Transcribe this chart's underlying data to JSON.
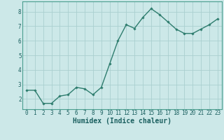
{
  "x": [
    0,
    1,
    2,
    3,
    4,
    5,
    6,
    7,
    8,
    9,
    10,
    11,
    12,
    13,
    14,
    15,
    16,
    17,
    18,
    19,
    20,
    21,
    22,
    23
  ],
  "y": [
    2.6,
    2.6,
    1.7,
    1.7,
    2.2,
    2.3,
    2.8,
    2.7,
    2.3,
    2.8,
    4.4,
    6.0,
    7.1,
    6.85,
    7.6,
    8.2,
    7.8,
    7.3,
    6.8,
    6.5,
    6.5,
    6.8,
    7.1,
    7.5
  ],
  "line_color": "#2e7d6e",
  "marker": "D",
  "marker_size": 1.8,
  "line_width": 1.0,
  "bg_color": "#cce8e8",
  "grid_color": "#aacfcf",
  "xlabel": "Humidex (Indice chaleur)",
  "xlabel_fontsize": 7,
  "yticks": [
    2,
    3,
    4,
    5,
    6,
    7,
    8
  ],
  "xticks": [
    0,
    1,
    2,
    3,
    4,
    5,
    6,
    7,
    8,
    9,
    10,
    11,
    12,
    13,
    14,
    15,
    16,
    17,
    18,
    19,
    20,
    21,
    22,
    23
  ],
  "ylim": [
    1.3,
    8.7
  ],
  "xlim": [
    -0.5,
    23.5
  ],
  "tick_fontsize": 5.5,
  "spine_color": "#4a9e8e",
  "text_color": "#1a5f5f"
}
